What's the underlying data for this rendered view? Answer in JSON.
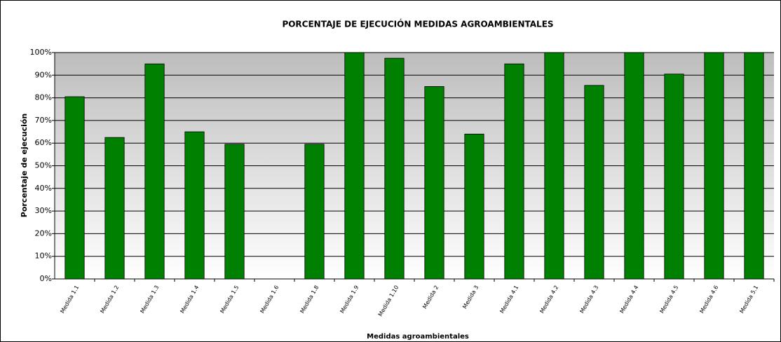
{
  "chart_data": {
    "type": "bar",
    "title": "PORCENTAJE DE EJECUCIÓN MEDIDAS AGROAMBIENTALES",
    "x_label": "Medidas agroambientales",
    "y_label": "Porcentaje de ejecución",
    "categories": [
      "Medida 1.1",
      "Medida 1.2",
      "Medida 1.3",
      "Medida 1.4",
      "Medida 1.5",
      "Medida 1.6",
      "Medida 1.8",
      "Medida 1.9",
      "Medida 1.10",
      "Medida 2",
      "Medida 3",
      "Medida 4.1",
      "Medida 4.2",
      "Medida 4.3",
      "Medida 4.4",
      "Medida 4.5",
      "Medida 4.6",
      "Medida 5.1"
    ],
    "values": [
      80.5,
      62.5,
      95,
      65,
      59.5,
      0,
      59.5,
      100,
      97.5,
      85,
      64,
      95,
      100,
      85.5,
      100,
      90.5,
      100,
      100
    ],
    "color": "#008000",
    "ylim": [
      0,
      100
    ],
    "yticks": [
      {
        "value": 0,
        "label": "0%"
      },
      {
        "value": 10,
        "label": "10%"
      },
      {
        "value": 20,
        "label": "20%"
      },
      {
        "value": 30,
        "label": "30%"
      },
      {
        "value": 40,
        "label": "40%"
      },
      {
        "value": 50,
        "label": "50%"
      },
      {
        "value": 60,
        "label": "60%"
      },
      {
        "value": 70,
        "label": "70%"
      },
      {
        "value": 80,
        "label": "80%"
      },
      {
        "value": 90,
        "label": "90%"
      },
      {
        "value": 100,
        "label": "100%"
      }
    ],
    "grid": true
  }
}
